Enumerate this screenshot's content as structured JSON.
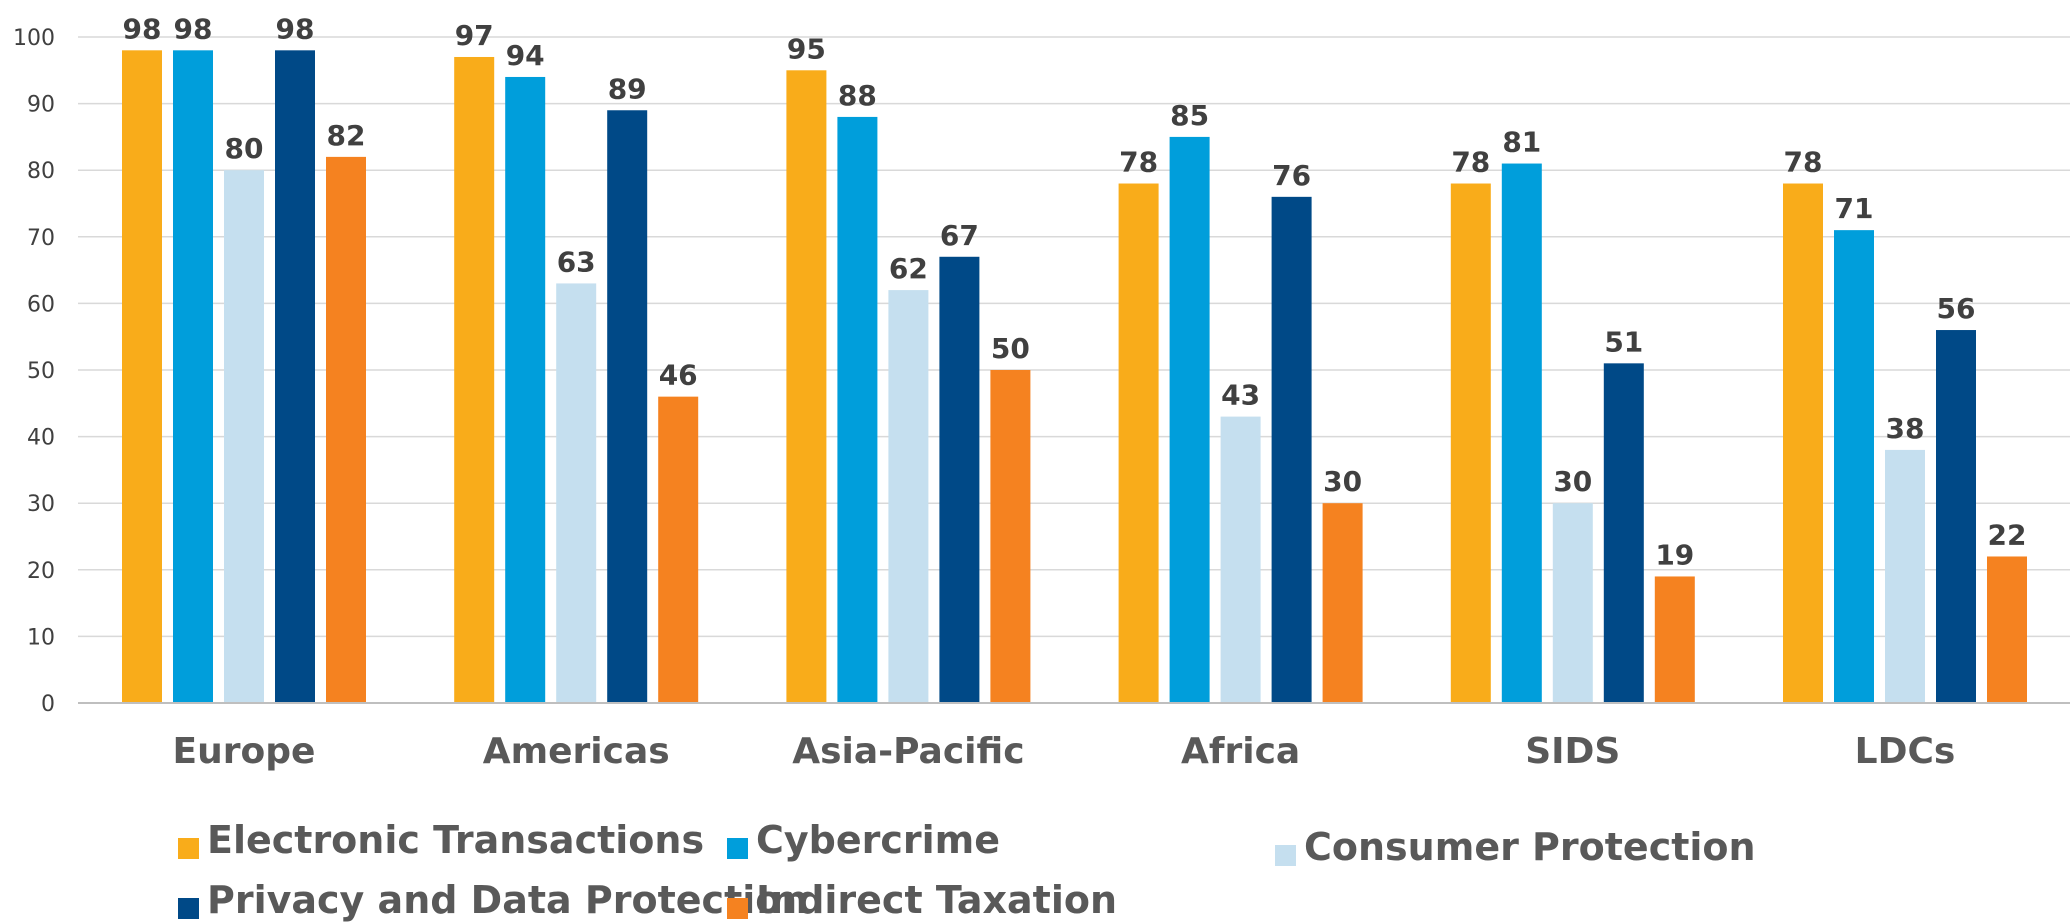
{
  "chart_data": {
    "type": "bar",
    "title": "",
    "xlabel": "",
    "ylabel": "",
    "ylim": [
      0,
      100
    ],
    "yticks": [
      "0",
      "10",
      "20",
      "30",
      "40",
      "50",
      "60",
      "70",
      "80",
      "90",
      "100"
    ],
    "grid": true,
    "legend_position": "bottom",
    "categories": [
      "Europe",
      "Americas",
      "Asia-Pacific",
      "Africa",
      "SIDS",
      "LDCs"
    ],
    "series": [
      {
        "name": "Electronic Transactions",
        "color": "#F9AC1A",
        "values": [
          98,
          97,
          95,
          78,
          78,
          78
        ]
      },
      {
        "name": "Cybercrime",
        "color": "#009EDB",
        "values": [
          98,
          94,
          88,
          85,
          81,
          71
        ]
      },
      {
        "name": "Consumer Protection",
        "color": "#C5DFEF",
        "values": [
          80,
          63,
          62,
          43,
          30,
          38
        ]
      },
      {
        "name": "Privacy and Data Protection",
        "color": "#004987",
        "values": [
          98,
          89,
          67,
          76,
          51,
          56
        ]
      },
      {
        "name": "Indirect Taxation",
        "color": "#F58220",
        "values": [
          82,
          46,
          50,
          30,
          19,
          22
        ]
      }
    ]
  }
}
